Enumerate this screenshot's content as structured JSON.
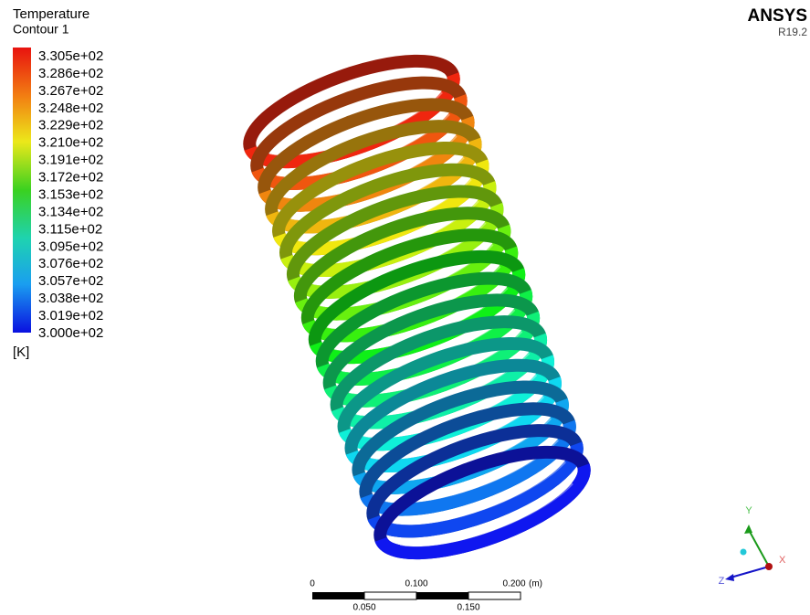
{
  "legend": {
    "title": "Temperature",
    "subtitle": "Contour 1",
    "labels": [
      "3.305e+02",
      "3.286e+02",
      "3.267e+02",
      "3.248e+02",
      "3.229e+02",
      "3.210e+02",
      "3.191e+02",
      "3.172e+02",
      "3.153e+02",
      "3.134e+02",
      "3.115e+02",
      "3.095e+02",
      "3.076e+02",
      "3.057e+02",
      "3.038e+02",
      "3.019e+02",
      "3.000e+02"
    ],
    "unit": "[K]"
  },
  "brand": {
    "name": "ANSYS",
    "version": "R19.2"
  },
  "scale_bar": {
    "top_labels": [
      "0",
      "0.100",
      "0.200"
    ],
    "unit": "(m)",
    "bottom_labels": [
      "0.050",
      "0.150"
    ]
  },
  "axes_triad": {
    "y": "Y",
    "x": "X",
    "z": "Z"
  }
}
